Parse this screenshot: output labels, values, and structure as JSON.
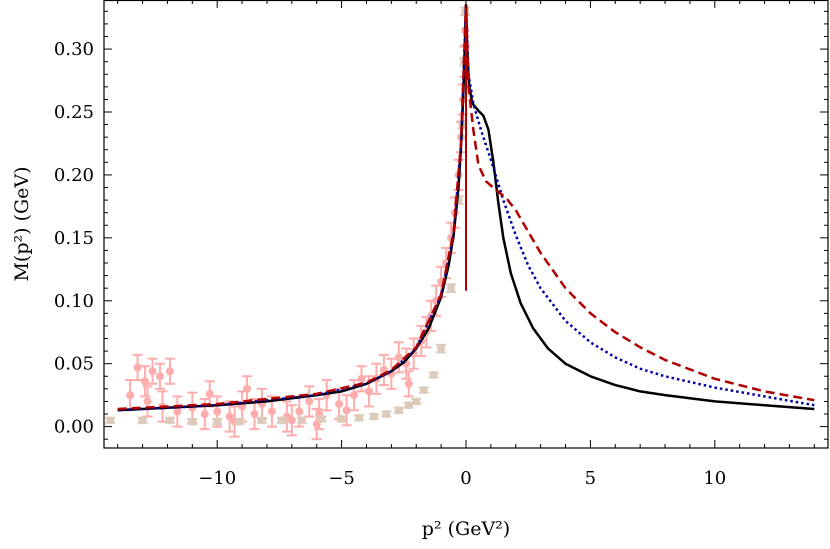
{
  "chart_data": {
    "type": "line",
    "title": "",
    "xlabel": "p² (GeV²)",
    "ylabel": "M(p²) (GeV)",
    "xlim": [
      -14.55,
      14.55
    ],
    "ylim": [
      -0.017,
      0.339
    ],
    "grid": false,
    "legend": "none",
    "xticks": [
      -10,
      -5,
      0,
      5,
      10
    ],
    "xtick_labels": [
      "−10",
      "−5",
      "0",
      "5",
      "10"
    ],
    "yticks": [
      0.0,
      0.05,
      0.1,
      0.15,
      0.2,
      0.25,
      0.3
    ],
    "ytick_labels": [
      "0.00",
      "0.05",
      "0.10",
      "0.15",
      "0.20",
      "0.25",
      "0.30"
    ],
    "colors": {
      "black": "#000000",
      "blue": "#00009e",
      "red": "#b00000",
      "pink": "#ffacac",
      "tan": "#dccbbb"
    },
    "series": [
      {
        "name": "lattice-data-pink",
        "kind": "errorbar",
        "color": "#ffacac",
        "points": [
          [
            -13.2,
            0.047,
            0.01
          ],
          [
            -12.9,
            0.036,
            0.012
          ],
          [
            -12.6,
            0.044,
            0.01
          ],
          [
            -12.3,
            0.04,
            0.01
          ],
          [
            -11.9,
            0.044,
            0.01
          ],
          [
            -13.5,
            0.025,
            0.012
          ],
          [
            -12.8,
            0.02,
            0.012
          ],
          [
            -12.2,
            0.016,
            0.012
          ],
          [
            -11.6,
            0.012,
            0.012
          ],
          [
            -11.0,
            0.015,
            0.012
          ],
          [
            -10.5,
            0.01,
            0.012
          ],
          [
            -10.0,
            0.012,
            0.012
          ],
          [
            -9.5,
            0.008,
            0.012
          ],
          [
            -9.0,
            0.016,
            0.012
          ],
          [
            -8.5,
            0.01,
            0.012
          ],
          [
            -8.2,
            0.018,
            0.012
          ],
          [
            -7.8,
            0.012,
            0.012
          ],
          [
            -7.2,
            0.008,
            0.012
          ],
          [
            -6.7,
            0.012,
            0.012
          ],
          [
            -6.3,
            0.02,
            0.012
          ],
          [
            -5.9,
            0.01,
            0.012
          ],
          [
            -5.6,
            0.025,
            0.012
          ],
          [
            -5.1,
            0.018,
            0.012
          ],
          [
            -4.8,
            0.013,
            0.012
          ],
          [
            -4.5,
            0.025,
            0.012
          ],
          [
            -4.2,
            0.038,
            0.01
          ],
          [
            -3.9,
            0.028,
            0.012
          ],
          [
            -3.6,
            0.038,
            0.012
          ],
          [
            -3.3,
            0.045,
            0.012
          ],
          [
            -3.0,
            0.042,
            0.012
          ],
          [
            -2.7,
            0.055,
            0.012
          ],
          [
            -2.4,
            0.05,
            0.012
          ],
          [
            -2.1,
            0.058,
            0.012
          ],
          [
            -1.8,
            0.068,
            0.012
          ],
          [
            -1.6,
            0.075,
            0.012
          ],
          [
            -1.4,
            0.088,
            0.012
          ],
          [
            -1.2,
            0.1,
            0.012
          ],
          [
            -1.0,
            0.115,
            0.012
          ],
          [
            -0.8,
            0.13,
            0.012
          ],
          [
            -0.6,
            0.15,
            0.012
          ],
          [
            -0.45,
            0.17,
            0.012
          ],
          [
            -0.3,
            0.2,
            0.012
          ],
          [
            -0.2,
            0.23,
            0.012
          ],
          [
            -0.12,
            0.26,
            0.012
          ],
          [
            -0.07,
            0.29,
            0.012
          ],
          [
            -0.03,
            0.315,
            0.012
          ],
          [
            -2.3,
            0.034,
            0.01
          ],
          [
            -8.8,
            0.03,
            0.01
          ],
          [
            -9.3,
            0.004,
            0.012
          ],
          [
            -6.0,
            0.002,
            0.012
          ],
          [
            -7.0,
            0.005,
            0.012
          ],
          [
            -10.3,
            0.026,
            0.01
          ]
        ]
      },
      {
        "name": "lattice-data-tan",
        "kind": "errorbar",
        "color": "#dccbbb",
        "points": [
          [
            -14.3,
            0.005,
            0.002
          ],
          [
            -13.0,
            0.005,
            0.002
          ],
          [
            -11.9,
            0.005,
            0.002
          ],
          [
            -11.0,
            0.004,
            0.002
          ],
          [
            -10.0,
            0.004,
            0.002
          ],
          [
            -9.1,
            0.004,
            0.002
          ],
          [
            -8.2,
            0.005,
            0.002
          ],
          [
            -7.4,
            0.005,
            0.002
          ],
          [
            -6.6,
            0.005,
            0.002
          ],
          [
            -5.8,
            0.006,
            0.002
          ],
          [
            -5.0,
            0.006,
            0.002
          ],
          [
            -4.3,
            0.007,
            0.002
          ],
          [
            -3.7,
            0.008,
            0.002
          ],
          [
            -3.2,
            0.01,
            0.002
          ],
          [
            -2.7,
            0.013,
            0.002
          ],
          [
            -2.3,
            0.017,
            0.002
          ],
          [
            -2.0,
            0.02,
            0.002
          ],
          [
            -1.7,
            0.029,
            0.002
          ],
          [
            -1.3,
            0.041,
            0.002
          ],
          [
            -1.0,
            0.062,
            0.003
          ],
          [
            -0.6,
            0.11,
            0.003
          ],
          [
            -0.3,
            0.18,
            0.003
          ],
          [
            -0.15,
            0.24,
            0.003
          ],
          [
            -0.07,
            0.29,
            0.003
          ],
          [
            -0.03,
            0.33,
            0.003
          ]
        ]
      },
      {
        "name": "black-solid",
        "kind": "line",
        "color": "#000000",
        "dash": "",
        "points": [
          [
            -14,
            0.013
          ],
          [
            -12,
            0.015
          ],
          [
            -10,
            0.017
          ],
          [
            -8,
            0.02
          ],
          [
            -6,
            0.025
          ],
          [
            -5,
            0.028
          ],
          [
            -4,
            0.034
          ],
          [
            -3,
            0.044
          ],
          [
            -2.5,
            0.051
          ],
          [
            -2,
            0.062
          ],
          [
            -1.5,
            0.078
          ],
          [
            -1,
            0.103
          ],
          [
            -0.7,
            0.128
          ],
          [
            -0.5,
            0.152
          ],
          [
            -0.3,
            0.19
          ],
          [
            -0.2,
            0.222
          ],
          [
            -0.1,
            0.268
          ],
          [
            -0.04,
            0.305
          ],
          [
            0,
            0.335
          ],
          [
            0.05,
            0.3
          ],
          [
            0.12,
            0.272
          ],
          [
            0.25,
            0.257
          ],
          [
            0.5,
            0.251
          ],
          [
            0.7,
            0.247
          ],
          [
            0.9,
            0.236
          ],
          [
            1.1,
            0.21
          ],
          [
            1.3,
            0.178
          ],
          [
            1.5,
            0.15
          ],
          [
            1.8,
            0.122
          ],
          [
            2.2,
            0.098
          ],
          [
            2.7,
            0.078
          ],
          [
            3.3,
            0.062
          ],
          [
            4,
            0.05
          ],
          [
            5,
            0.04
          ],
          [
            6,
            0.033
          ],
          [
            7,
            0.028
          ],
          [
            8,
            0.025
          ],
          [
            10,
            0.02
          ],
          [
            12,
            0.017
          ],
          [
            14,
            0.014
          ]
        ]
      },
      {
        "name": "blue-dotted",
        "kind": "line",
        "color": "#00009e",
        "dash": "2.5,3",
        "points": [
          [
            -14,
            0.013
          ],
          [
            -10,
            0.017
          ],
          [
            -6,
            0.025
          ],
          [
            -4,
            0.034
          ],
          [
            -3,
            0.044
          ],
          [
            -2,
            0.062
          ],
          [
            -1,
            0.104
          ],
          [
            -0.5,
            0.153
          ],
          [
            -0.2,
            0.223
          ],
          [
            0,
            0.335
          ],
          [
            0.1,
            0.28
          ],
          [
            0.3,
            0.256
          ],
          [
            0.6,
            0.236
          ],
          [
            1,
            0.212
          ],
          [
            1.5,
            0.18
          ],
          [
            2,
            0.152
          ],
          [
            2.5,
            0.128
          ],
          [
            3,
            0.11
          ],
          [
            4,
            0.084
          ],
          [
            5,
            0.067
          ],
          [
            6,
            0.055
          ],
          [
            7,
            0.046
          ],
          [
            8,
            0.04
          ],
          [
            10,
            0.031
          ],
          [
            12,
            0.024
          ],
          [
            14,
            0.017
          ]
        ]
      },
      {
        "name": "red-dashed",
        "kind": "line",
        "color": "#b00000",
        "dash": "9,5",
        "points": [
          [
            -14,
            0.014
          ],
          [
            -10,
            0.018
          ],
          [
            -6,
            0.026
          ],
          [
            -4,
            0.035
          ],
          [
            -3,
            0.045
          ],
          [
            -2,
            0.063
          ],
          [
            -1,
            0.105
          ],
          [
            -0.5,
            0.155
          ],
          [
            -0.2,
            0.225
          ],
          [
            0,
            0.335
          ],
          [
            0.1,
            0.27
          ],
          [
            0.3,
            0.235
          ],
          [
            0.5,
            0.208
          ],
          [
            0.8,
            0.195
          ],
          [
            1.2,
            0.188
          ],
          [
            1.6,
            0.182
          ],
          [
            2,
            0.172
          ],
          [
            2.5,
            0.155
          ],
          [
            3,
            0.138
          ],
          [
            4,
            0.11
          ],
          [
            5,
            0.09
          ],
          [
            6,
            0.075
          ],
          [
            7,
            0.063
          ],
          [
            8,
            0.053
          ],
          [
            10,
            0.038
          ],
          [
            12,
            0.028
          ],
          [
            14,
            0.021
          ]
        ]
      },
      {
        "name": "red-vertical",
        "kind": "line",
        "color": "#b00000",
        "dash": "",
        "points": [
          [
            0,
            0.108
          ],
          [
            0,
            0.335
          ]
        ]
      }
    ]
  }
}
